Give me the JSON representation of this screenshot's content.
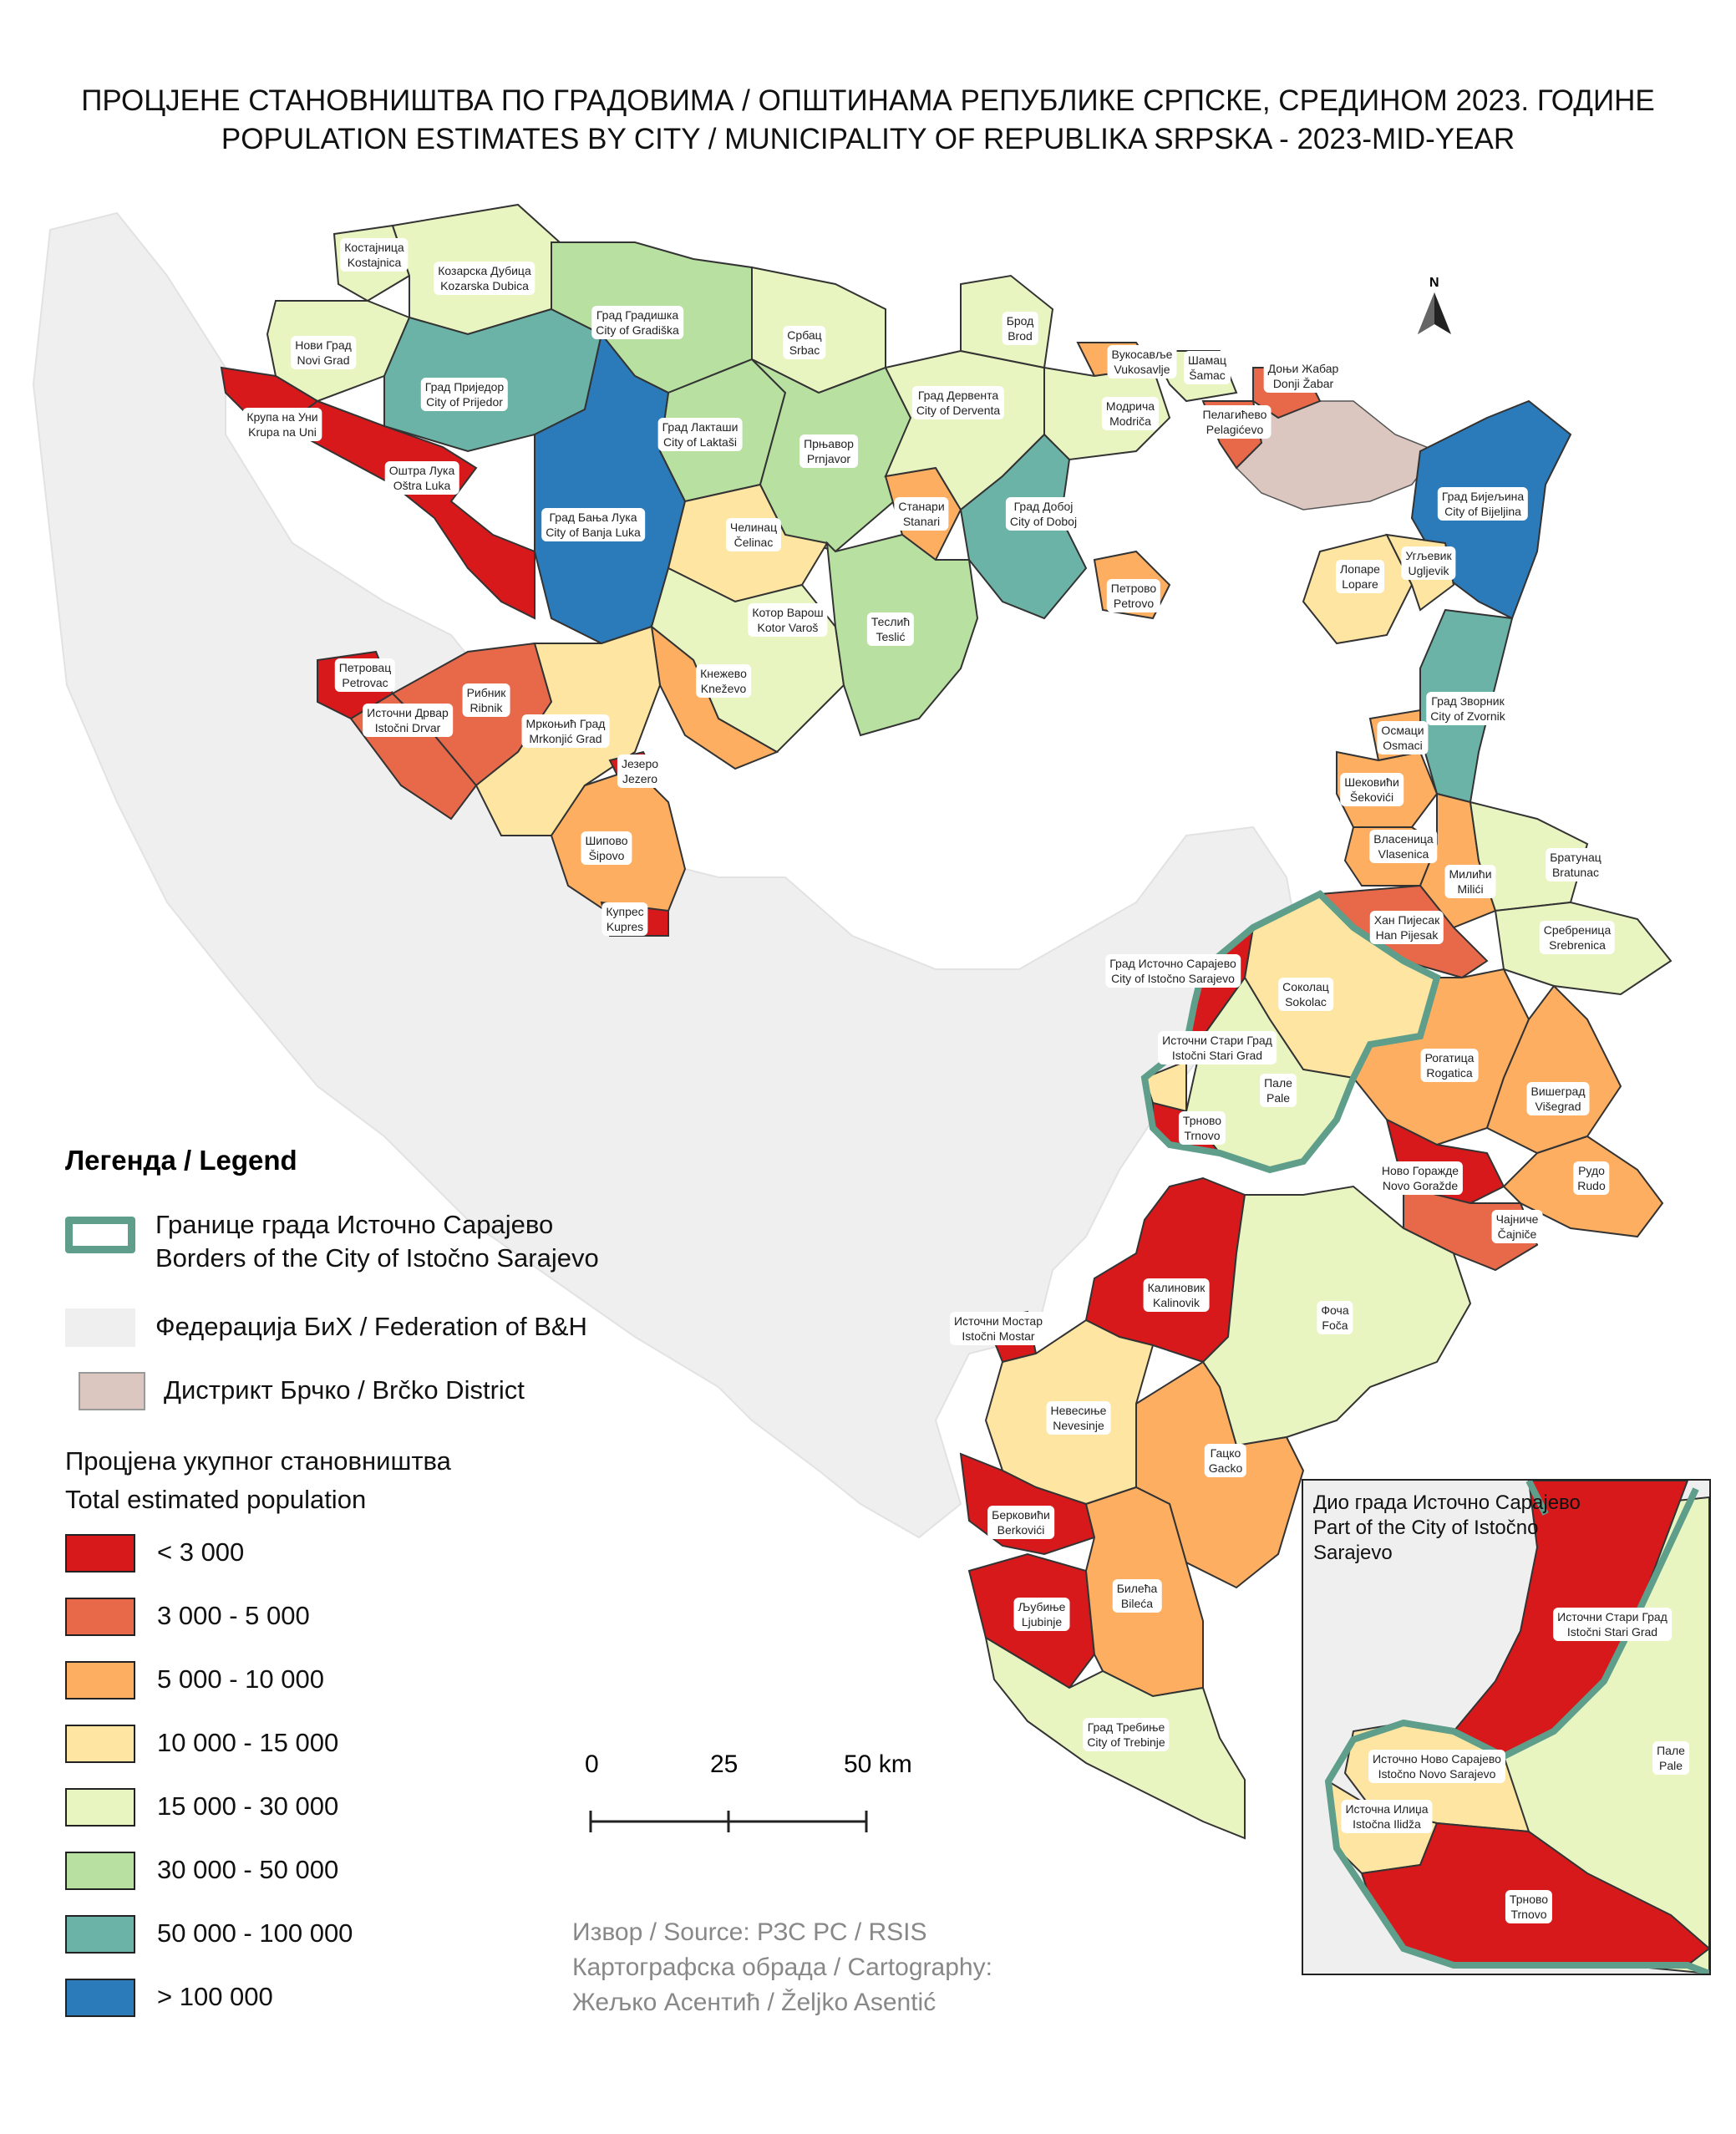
{
  "title": {
    "line1": "ПРОЦЈЕНЕ СТАНОВНИШТВА ПО ГРАДОВИМА / ОПШТИНАМА РЕПУБЛИКЕ СРПСКЕ, СРЕДИНОМ 2023. ГОДИНЕ",
    "line2": "POPULATION ESTIMATES BY CITY / MUNICIPALITY OF REPUBLIKA SRPSKA - 2023-MID-YEAR"
  },
  "north_label": "N",
  "colors": {
    "c1": "#d7191c",
    "c2": "#e8684a",
    "c3": "#fdae61",
    "c4": "#fee6a2",
    "c5": "#e9f5c1",
    "c6": "#b8e0a0",
    "c7": "#6bb3a6",
    "c8": "#2b7bba",
    "federation": "#efefef",
    "brcko": "#dcc7c0",
    "istocno_border": "#5e9e8a"
  },
  "labels": [
    {
      "cyr": "Костајница",
      "lat": "Kostajnica",
      "cls": "c5"
    },
    {
      "cyr": "Козарска Дубица",
      "lat": "Kozarska Dubica",
      "cls": "c5"
    },
    {
      "cyr": "Нови Град",
      "lat": "Novi Grad",
      "cls": "c5"
    },
    {
      "cyr": "Крупа на Уни",
      "lat": "Krupa na Uni",
      "cls": "c1"
    },
    {
      "cyr": "Оштра Лука",
      "lat": "Oštra Luka",
      "cls": "c1"
    },
    {
      "cyr": "Град Приједор",
      "lat": "City of Prijedor",
      "cls": "c7"
    },
    {
      "cyr": "Град Градишка",
      "lat": "City of Gradiška",
      "cls": "c6"
    },
    {
      "cyr": "Србац",
      "lat": "Srbac",
      "cls": "c5"
    },
    {
      "cyr": "Град Лакташи",
      "lat": "City of Laktaši",
      "cls": "c6"
    },
    {
      "cyr": "Прњавор",
      "lat": "Prnjavor",
      "cls": "c6"
    },
    {
      "cyr": "Град Бања Лука",
      "lat": "City of Banja Luka",
      "cls": "c8"
    },
    {
      "cyr": "Челинац",
      "lat": "Čelinac",
      "cls": "c4"
    },
    {
      "cyr": "Станари",
      "lat": "Stanari",
      "cls": "c3"
    },
    {
      "cyr": "Град Дервента",
      "lat": "City of Derventa",
      "cls": "c5"
    },
    {
      "cyr": "Брод",
      "lat": "Brod",
      "cls": "c5"
    },
    {
      "cyr": "Вукосавље",
      "lat": "Vukosavlje",
      "cls": "c3"
    },
    {
      "cyr": "Модрича",
      "lat": "Modriča",
      "cls": "c5"
    },
    {
      "cyr": "Шамац",
      "lat": "Šamac",
      "cls": "c5"
    },
    {
      "cyr": "Доњи Жабар",
      "lat": "Donji Žabar",
      "cls": "c2"
    },
    {
      "cyr": "Пелагићево",
      "lat": "Pelagićevo",
      "cls": "c2"
    },
    {
      "cyr": "Град Добој",
      "lat": "City of Doboj",
      "cls": "c7"
    },
    {
      "cyr": "Петрово",
      "lat": "Petrovo",
      "cls": "c3"
    },
    {
      "cyr": "Град Бијељина",
      "lat": "City of Bijeljina",
      "cls": "c8"
    },
    {
      "cyr": "Лопаре",
      "lat": "Lopare",
      "cls": "c4"
    },
    {
      "cyr": "Угљевик",
      "lat": "Ugljevik",
      "cls": "c4"
    },
    {
      "cyr": "Котор Варош",
      "lat": "Kotor Varoš",
      "cls": "c5"
    },
    {
      "cyr": "Теслић",
      "lat": "Teslić",
      "cls": "c6"
    },
    {
      "cyr": "Кнежево",
      "lat": "Kneževo",
      "cls": "c3"
    },
    {
      "cyr": "Петровац",
      "lat": "Petrovac",
      "cls": "c1"
    },
    {
      "cyr": "Рибник",
      "lat": "Ribnik",
      "cls": "c2"
    },
    {
      "cyr": "Источни Дрвар",
      "lat": "Istočni Drvar",
      "cls": "c2"
    },
    {
      "cyr": "Мркоњић Град",
      "lat": "Mrkonjić Grad",
      "cls": "c4"
    },
    {
      "cyr": "Језеро",
      "lat": "Jezero",
      "cls": "c1"
    },
    {
      "cyr": "Шипово",
      "lat": "Šipovo",
      "cls": "c3"
    },
    {
      "cyr": "Купрес",
      "lat": "Kupres",
      "cls": "c1"
    },
    {
      "cyr": "Град Зворник",
      "lat": "City of Zvornik",
      "cls": "c7"
    },
    {
      "cyr": "Осмаци",
      "lat": "Osmaci",
      "cls": "c3"
    },
    {
      "cyr": "Шековићи",
      "lat": "Šekovići",
      "cls": "c3"
    },
    {
      "cyr": "Власеница",
      "lat": "Vlasenica",
      "cls": "c3"
    },
    {
      "cyr": "Милићи",
      "lat": "Milići",
      "cls": "c3"
    },
    {
      "cyr": "Братунац",
      "lat": "Bratunac",
      "cls": "c5"
    },
    {
      "cyr": "Сребреница",
      "lat": "Srebrenica",
      "cls": "c5"
    },
    {
      "cyr": "Хан Пијесак",
      "lat": "Han Pijesak",
      "cls": "c2"
    },
    {
      "cyr": "Град Источно Сарајево",
      "lat": "City of Istočno Sarajevo",
      "cls": "none"
    },
    {
      "cyr": "Соколац",
      "lat": "Sokolac",
      "cls": "c4"
    },
    {
      "cyr": "Источни Стари Град",
      "lat": "Istočni Stari Grad",
      "cls": "c1"
    },
    {
      "cyr": "Пале",
      "lat": "Pale",
      "cls": "c5"
    },
    {
      "cyr": "Трново",
      "lat": "Trnovo",
      "cls": "c1"
    },
    {
      "cyr": "Рогатица",
      "lat": "Rogatica",
      "cls": "c3"
    },
    {
      "cyr": "Вишеград",
      "lat": "Višegrad",
      "cls": "c3"
    },
    {
      "cyr": "Ново Горажде",
      "lat": "Novo Goražde",
      "cls": "c1"
    },
    {
      "cyr": "Рудо",
      "lat": "Rudo",
      "cls": "c3"
    },
    {
      "cyr": "Чајниче",
      "lat": "Čajniče",
      "cls": "c2"
    },
    {
      "cyr": "Калиновик",
      "lat": "Kalinovik",
      "cls": "c1"
    },
    {
      "cyr": "Фоча",
      "lat": "Foča",
      "cls": "c5"
    },
    {
      "cyr": "Источни Мостар",
      "lat": "Istočni Mostar",
      "cls": "c1"
    },
    {
      "cyr": "Невесиње",
      "lat": "Nevesinje",
      "cls": "c4"
    },
    {
      "cyr": "Гацко",
      "lat": "Gacko",
      "cls": "c3"
    },
    {
      "cyr": "Берковићи",
      "lat": "Berkovići",
      "cls": "c1"
    },
    {
      "cyr": "Љубиње",
      "lat": "Ljubinje",
      "cls": "c1"
    },
    {
      "cyr": "Билећа",
      "lat": "Bileća",
      "cls": "c3"
    },
    {
      "cyr": "Град Требиње",
      "lat": "City of Trebinje",
      "cls": "c5"
    }
  ],
  "legend": {
    "title": "Легенда / Legend",
    "border_line1": "Границе града Источно Сарајево",
    "border_line2": "Borders of the City of Istočno Sarajevo",
    "federation": "Федерација БиХ / Federation of B&H",
    "brcko": "Дистрикт Брчко / Brčko District",
    "pop_title1": "Процјена укупног становништва",
    "pop_title2": "Total estimated population",
    "classes": [
      {
        "label": "< 3 000",
        "cls": "c1"
      },
      {
        "label": "3 000 - 5 000",
        "cls": "c2"
      },
      {
        "label": "5 000 - 10 000",
        "cls": "c3"
      },
      {
        "label": "10 000 - 15 000",
        "cls": "c4"
      },
      {
        "label": "15 000 - 30 000",
        "cls": "c5"
      },
      {
        "label": "30 000 - 50 000",
        "cls": "c6"
      },
      {
        "label": "50 000 - 100 000",
        "cls": "c7"
      },
      {
        "label": " > 100 000",
        "cls": "c8"
      }
    ]
  },
  "scale": {
    "t0": "0",
    "t1": "25",
    "t2": "50 km"
  },
  "source": {
    "line1": "Извор / Source: РЗС РС / RSIS",
    "line2": "Картографска обрада / Cartography:",
    "line3": "Жељко Асентић / Željko Asentić"
  },
  "inset": {
    "title1": "Дио града Источно Сарајево",
    "title2": "Part of the City of Istočno",
    "title3": "Sarajevo",
    "labels": [
      {
        "cyr": "Источни Стари Град",
        "lat": "Istočni Stari Grad"
      },
      {
        "cyr": "Пале",
        "lat": "Pale"
      },
      {
        "cyr": "Источно Ново Сарајево",
        "lat": "Istočno Novo Sarajevo"
      },
      {
        "cyr": "Источна Илиџа",
        "lat": "Istočna Ilidža"
      },
      {
        "cyr": "Трново",
        "lat": "Trnovo"
      }
    ]
  }
}
